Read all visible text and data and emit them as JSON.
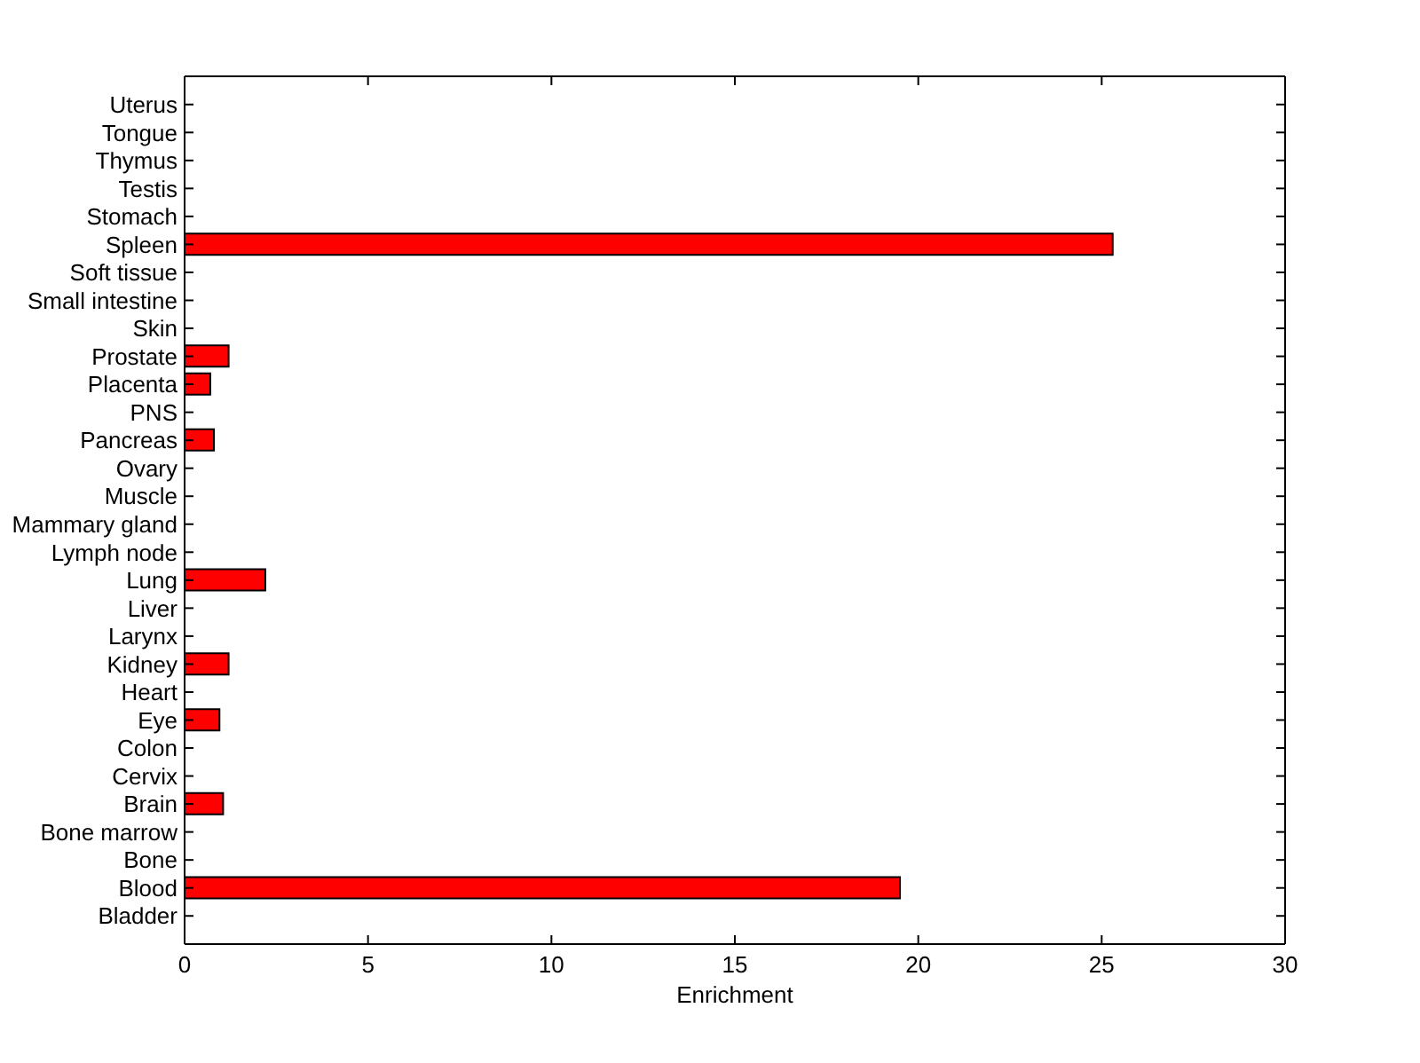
{
  "chart_data": {
    "type": "bar",
    "orientation": "horizontal",
    "xlabel": "Enrichment",
    "categories": [
      "Uterus",
      "Tongue",
      "Thymus",
      "Testis",
      "Stomach",
      "Spleen",
      "Soft tissue",
      "Small intestine",
      "Skin",
      "Prostate",
      "Placenta",
      "PNS",
      "Pancreas",
      "Ovary",
      "Muscle",
      "Mammary gland",
      "Lymph node",
      "Lung",
      "Liver",
      "Larynx",
      "Kidney",
      "Heart",
      "Eye",
      "Colon",
      "Cervix",
      "Brain",
      "Bone marrow",
      "Bone",
      "Blood",
      "Bladder"
    ],
    "values": [
      0,
      0,
      0,
      0,
      0,
      25.3,
      0,
      0,
      0,
      1.2,
      0.7,
      0,
      0.8,
      0,
      0,
      0,
      0,
      2.2,
      0,
      0,
      1.2,
      0,
      0.95,
      0,
      0,
      1.05,
      0,
      0,
      19.5,
      0
    ],
    "color": "#ff0000",
    "xlim": [
      0,
      30
    ],
    "xticks": [
      0,
      5,
      10,
      15,
      20,
      25,
      30
    ]
  }
}
